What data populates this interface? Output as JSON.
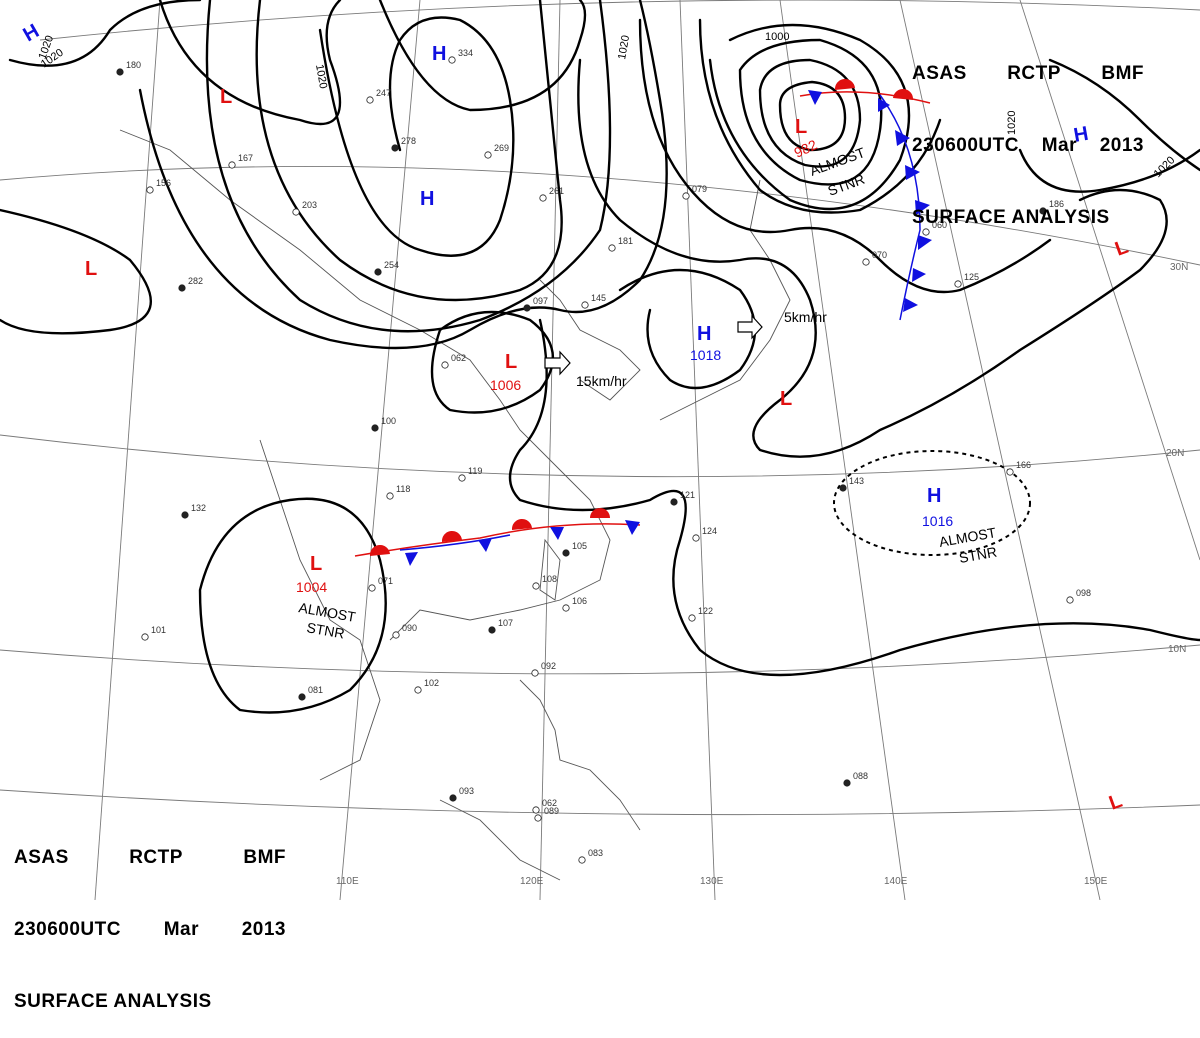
{
  "header": {
    "agency": "ASAS",
    "station": "RCTP",
    "code": "BMF",
    "time": "230600UTC",
    "month": "Mar",
    "year": "2013",
    "title": "SURFACE ANALYSIS"
  },
  "colors": {
    "high": "#1010e0",
    "low": "#e01010",
    "isobar": "#000000",
    "grid": "#7a7a7a",
    "coast": "#555555",
    "warm_front": "#e01010",
    "cold_front": "#1010e0"
  },
  "latitude_labels": [
    "30N",
    "20N",
    "10N"
  ],
  "longitude_labels": [
    "110E",
    "120E",
    "130E",
    "140E",
    "150E"
  ],
  "isobar_labels": [
    "1020",
    "1020",
    "1020",
    "1000",
    "1020",
    "1020"
  ],
  "pressure_centers": [
    {
      "type": "H",
      "symbol": "H",
      "value": "1020"
    },
    {
      "type": "H",
      "symbol": "H",
      "value": ""
    },
    {
      "type": "H",
      "symbol": "H",
      "value": ""
    },
    {
      "type": "H",
      "symbol": "H",
      "value": ""
    },
    {
      "type": "H",
      "symbol": "H",
      "value": "1018"
    },
    {
      "type": "H",
      "symbol": "H",
      "value": "1016"
    },
    {
      "type": "L",
      "symbol": "L",
      "value": ""
    },
    {
      "type": "L",
      "symbol": "L",
      "value": ""
    },
    {
      "type": "L",
      "symbol": "L",
      "value": "982"
    },
    {
      "type": "L",
      "symbol": "L",
      "value": "1006"
    },
    {
      "type": "L",
      "symbol": "L",
      "value": "1004"
    },
    {
      "type": "L",
      "symbol": "L",
      "value": ""
    },
    {
      "type": "L",
      "symbol": "L",
      "value": ""
    },
    {
      "type": "L",
      "symbol": "L",
      "value": ""
    }
  ],
  "annotations": {
    "almost": "ALMOST",
    "stnr": "STNR",
    "motion_fast": "15km/hr",
    "motion_slow": "5km/hr"
  },
  "station_plots": [
    "180",
    "167",
    "156",
    "282",
    "203",
    "247",
    "278",
    "334",
    "269",
    "254",
    "261",
    "181",
    "097",
    "145",
    "062",
    "100",
    "119",
    "118",
    "105",
    "108",
    "106",
    "107",
    "071",
    "090",
    "081",
    "102",
    "101",
    "132",
    "092",
    "062",
    "093",
    "089",
    "083",
    "121",
    "124",
    "122",
    "143",
    "166",
    "098",
    "088",
    "079",
    "060",
    "186",
    "125",
    "070"
  ]
}
